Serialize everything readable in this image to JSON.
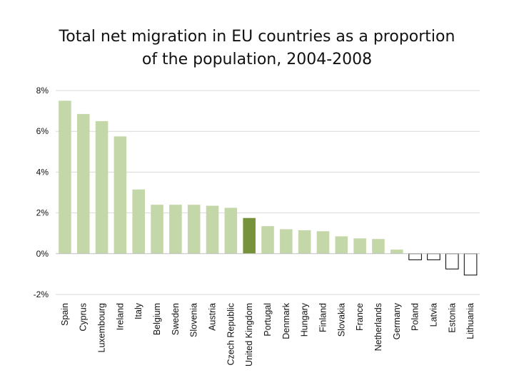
{
  "title_line1": "Total net migration in EU countries as a proportion",
  "title_line2": "of the population, 2004-2008",
  "chart_data": {
    "type": "bar",
    "title": "Total net migration in EU countries as a proportion of the population, 2004-2008",
    "xlabel": "",
    "ylabel": "",
    "ylim": [
      -2,
      8
    ],
    "yticks": [
      "8%",
      "6%",
      "4%",
      "2%",
      "0%",
      "-2%"
    ],
    "ytick_values": [
      8,
      6,
      4,
      2,
      0,
      -2
    ],
    "grid": true,
    "categories": [
      "Spain",
      "Cyprus",
      "Luxembourg",
      "Ireland",
      "Italy",
      "Belgium",
      "Sweden",
      "Slovenia",
      "Austria",
      "Czech Republic",
      "United Kingdom",
      "Portugal",
      "Denmark",
      "Hungary",
      "Finland",
      "Slovakia",
      "France",
      "Netherlands",
      "Germany",
      "Poland",
      "Latvia",
      "Estonia",
      "Lithuania"
    ],
    "values": [
      7.5,
      6.85,
      6.5,
      5.75,
      3.15,
      2.4,
      2.4,
      2.4,
      2.35,
      2.25,
      1.75,
      1.35,
      1.2,
      1.15,
      1.1,
      0.85,
      0.75,
      0.72,
      0.2,
      -0.3,
      -0.3,
      -0.75,
      -1.05
    ],
    "highlight": "United Kingdom",
    "colors": {
      "bar": "#c4d7a8",
      "highlight": "#76933c",
      "negative_fill": "#ffffff",
      "negative_stroke": "#000000",
      "grid": "#d9d9d9"
    }
  }
}
